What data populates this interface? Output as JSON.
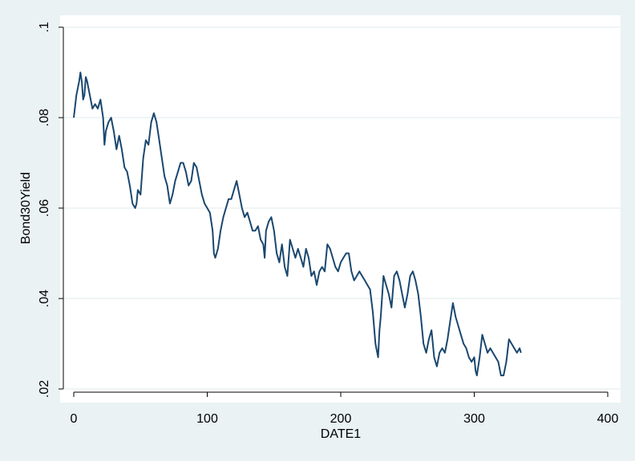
{
  "chart_data": {
    "type": "line",
    "xlabel": "DATE1",
    "ylabel": "Bond30Yield",
    "xlim": [
      0,
      400
    ],
    "ylim": [
      0.02,
      0.1
    ],
    "xticks": [
      0,
      100,
      200,
      300,
      400
    ],
    "xtick_labels": [
      "0",
      "100",
      "200",
      "300",
      "400"
    ],
    "yticks": [
      0.02,
      0.04,
      0.06,
      0.08,
      0.1
    ],
    "ytick_labels": [
      ".02",
      ".04",
      ".06",
      ".08",
      ".1"
    ],
    "grid": "horizontal",
    "colors": {
      "background": "#eaf2f3",
      "plot_area": "#ffffff",
      "line": "#1a476f",
      "grid": "#eaf2f3"
    },
    "series": [
      {
        "x": [
          0,
          2,
          4,
          5,
          6,
          7,
          8,
          9,
          10,
          12,
          14,
          16,
          18,
          20,
          22,
          23,
          24,
          26,
          28,
          30,
          32,
          34,
          36,
          38,
          40,
          42,
          44,
          46,
          47,
          48,
          50,
          52,
          54,
          56,
          58,
          60,
          62,
          64,
          66,
          68,
          70,
          72,
          74,
          76,
          78,
          80,
          82,
          84,
          86,
          88,
          90,
          92,
          94,
          96,
          98,
          100,
          102,
          104,
          105,
          106,
          108,
          110,
          112,
          114,
          116,
          118,
          120,
          122,
          124,
          126,
          128,
          130,
          132,
          134,
          136,
          138,
          140,
          142,
          143,
          144,
          146,
          148,
          150,
          152,
          154,
          156,
          158,
          160,
          162,
          164,
          166,
          168,
          170,
          172,
          174,
          176,
          178,
          180,
          182,
          184,
          186,
          188,
          190,
          192,
          194,
          196,
          198,
          200,
          202,
          204,
          206,
          208,
          210,
          212,
          214,
          216,
          218,
          220,
          222,
          224,
          226,
          228,
          229,
          230,
          232,
          234,
          236,
          238,
          240,
          242,
          244,
          246,
          248,
          250,
          252,
          254,
          256,
          258,
          260,
          262,
          264,
          266,
          268,
          270,
          272,
          274,
          276,
          278,
          280,
          282,
          284,
          286,
          288,
          290,
          292,
          294,
          296,
          298,
          300,
          301,
          302,
          304,
          306,
          308,
          310,
          312,
          314,
          316,
          318,
          320,
          322,
          324,
          326,
          328,
          330,
          332,
          334,
          335
        ],
        "y": [
          0.08,
          0.085,
          0.088,
          0.09,
          0.088,
          0.084,
          0.085,
          0.089,
          0.088,
          0.085,
          0.082,
          0.083,
          0.082,
          0.084,
          0.08,
          0.074,
          0.077,
          0.079,
          0.08,
          0.077,
          0.073,
          0.076,
          0.073,
          0.069,
          0.068,
          0.065,
          0.061,
          0.06,
          0.061,
          0.064,
          0.063,
          0.071,
          0.075,
          0.074,
          0.079,
          0.081,
          0.079,
          0.075,
          0.071,
          0.067,
          0.065,
          0.061,
          0.063,
          0.066,
          0.068,
          0.07,
          0.07,
          0.068,
          0.065,
          0.066,
          0.07,
          0.069,
          0.066,
          0.063,
          0.061,
          0.06,
          0.059,
          0.055,
          0.05,
          0.049,
          0.051,
          0.055,
          0.058,
          0.06,
          0.062,
          0.062,
          0.064,
          0.066,
          0.063,
          0.06,
          0.058,
          0.059,
          0.057,
          0.055,
          0.055,
          0.056,
          0.053,
          0.052,
          0.049,
          0.055,
          0.057,
          0.058,
          0.055,
          0.05,
          0.048,
          0.052,
          0.047,
          0.045,
          0.053,
          0.051,
          0.049,
          0.051,
          0.049,
          0.047,
          0.051,
          0.049,
          0.045,
          0.046,
          0.043,
          0.046,
          0.047,
          0.046,
          0.052,
          0.051,
          0.049,
          0.047,
          0.046,
          0.048,
          0.049,
          0.05,
          0.05,
          0.046,
          0.044,
          0.045,
          0.046,
          0.045,
          0.044,
          0.043,
          0.042,
          0.037,
          0.03,
          0.027,
          0.033,
          0.036,
          0.045,
          0.043,
          0.041,
          0.038,
          0.045,
          0.046,
          0.044,
          0.041,
          0.038,
          0.041,
          0.045,
          0.046,
          0.044,
          0.041,
          0.036,
          0.03,
          0.028,
          0.031,
          0.033,
          0.027,
          0.025,
          0.028,
          0.029,
          0.028,
          0.031,
          0.035,
          0.039,
          0.036,
          0.034,
          0.032,
          0.03,
          0.029,
          0.027,
          0.026,
          0.027,
          0.024,
          0.023,
          0.027,
          0.032,
          0.03,
          0.028,
          0.029,
          0.028,
          0.027,
          0.026,
          0.023,
          0.023,
          0.026,
          0.031,
          0.03,
          0.029,
          0.028,
          0.029,
          0.028
        ]
      }
    ]
  }
}
